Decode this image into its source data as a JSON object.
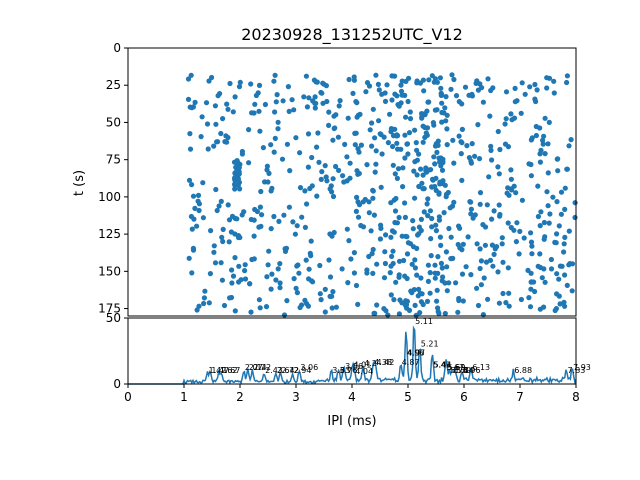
{
  "chart_data": [
    {
      "type": "scatter",
      "title": "20230928_131252UTC_V12",
      "xlabel": "",
      "ylabel": "t (s)",
      "xlim": [
        0,
        8
      ],
      "ylim": [
        180,
        0
      ],
      "y_inverted": true,
      "yticks": [
        0,
        25,
        50,
        75,
        100,
        125,
        150,
        175
      ],
      "yticklabels": [
        "0",
        "25",
        "50",
        "75",
        "100",
        "125",
        "150",
        "175"
      ],
      "marker_color": "#1f77b4",
      "point_count": 900,
      "x_range_of_points": [
        1.0,
        8.0
      ],
      "y_range_of_points": [
        18,
        180
      ],
      "note_dense_cluster": {
        "x": 1.93,
        "y_range": [
          75,
          95
        ]
      }
    },
    {
      "type": "line",
      "xlabel": "IPI (ms)",
      "ylabel": "",
      "xlim": [
        0,
        8
      ],
      "ylim": [
        0,
        50
      ],
      "xticks": [
        0,
        1,
        2,
        3,
        4,
        5,
        6,
        7,
        8
      ],
      "xticklabels": [
        "0",
        "1",
        "2",
        "3",
        "4",
        "5",
        "6",
        "7",
        "8"
      ],
      "yticks": [
        0,
        50
      ],
      "yticklabels": [
        "0",
        "50"
      ],
      "line_color": "#1f77b4",
      "peaks": [
        {
          "x": 1.42,
          "y": 7,
          "label": "1.42"
        },
        {
          "x": 1.47,
          "y": 7,
          "label": "1.47"
        },
        {
          "x": 1.62,
          "y": 7,
          "label": "1.62"
        },
        {
          "x": 1.67,
          "y": 7,
          "label": "1.67"
        },
        {
          "x": 2.07,
          "y": 9,
          "label": "2.07"
        },
        {
          "x": 2.14,
          "y": 9,
          "label": "2.14"
        },
        {
          "x": 2.22,
          "y": 9,
          "label": "2.22"
        },
        {
          "x": 2.43,
          "y": 7,
          "label": "2.43"
        },
        {
          "x": 2.64,
          "y": 7,
          "label": "2.64"
        },
        {
          "x": 2.72,
          "y": 7,
          "label": "2.72"
        },
        {
          "x": 2.94,
          "y": 7,
          "label": "2.94"
        },
        {
          "x": 3.06,
          "y": 9,
          "label": "3.06"
        },
        {
          "x": 3.63,
          "y": 7,
          "label": "3.63"
        },
        {
          "x": 3.76,
          "y": 7,
          "label": "3.76"
        },
        {
          "x": 3.86,
          "y": 10,
          "label": "3.86"
        },
        {
          "x": 4.01,
          "y": 11,
          "label": "4.01"
        },
        {
          "x": 4.04,
          "y": 6,
          "label": "4.04"
        },
        {
          "x": 4.2,
          "y": 12,
          "label": "4.2"
        },
        {
          "x": 4.38,
          "y": 13,
          "label": "4.38"
        },
        {
          "x": 4.42,
          "y": 13,
          "label": "4.42"
        },
        {
          "x": 4.87,
          "y": 13,
          "label": "4.87"
        },
        {
          "x": 4.96,
          "y": 20,
          "label": "4.96"
        },
        {
          "x": 4.97,
          "y": 20,
          "label": "4.97"
        },
        {
          "x": 5.11,
          "y": 44,
          "label": "5.11"
        },
        {
          "x": 5.21,
          "y": 27,
          "label": "5.21"
        },
        {
          "x": 5.43,
          "y": 11,
          "label": "5.43"
        },
        {
          "x": 5.44,
          "y": 11,
          "label": "5.44"
        },
        {
          "x": 5.67,
          "y": 9,
          "label": "5.67"
        },
        {
          "x": 5.69,
          "y": 9,
          "label": "5.69"
        },
        {
          "x": 5.74,
          "y": 7,
          "label": "5.74"
        },
        {
          "x": 5.79,
          "y": 7,
          "label": "5.79"
        },
        {
          "x": 5.84,
          "y": 7,
          "label": "5.84"
        },
        {
          "x": 5.96,
          "y": 7,
          "label": "5.96"
        },
        {
          "x": 6.13,
          "y": 9,
          "label": "6.13"
        },
        {
          "x": 6.88,
          "y": 7,
          "label": "6.88"
        },
        {
          "x": 7.83,
          "y": 7,
          "label": "7.83"
        },
        {
          "x": 7.93,
          "y": 9,
          "label": "7.93"
        }
      ]
    }
  ]
}
